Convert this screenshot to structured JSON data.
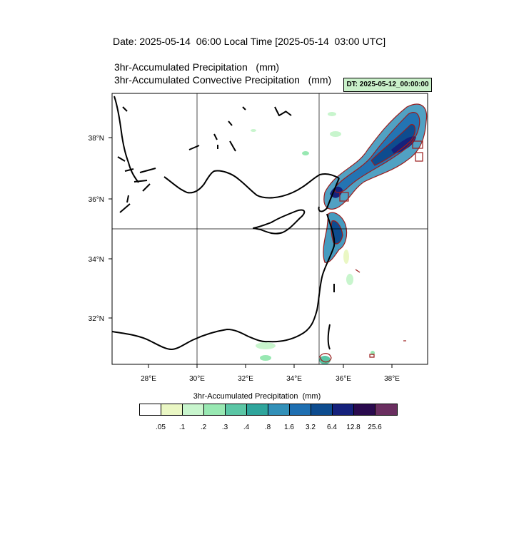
{
  "header": {
    "date_line": "Date: 2025-05-14  06:00 Local Time [2025-05-14  03:00 UTC]",
    "line1": "3hr-Accumulated Precipitation   (mm)",
    "line2": "3hr-Accumulated Convective Precipitation   (mm)",
    "dt_badge": "DT: 2025-05-12_00:00:00"
  },
  "map": {
    "lon_ticks": [
      "28°E",
      "30°E",
      "32°E",
      "34°E",
      "36°E",
      "38°E"
    ],
    "lat_ticks": [
      "38°N",
      "36°N",
      "34°N",
      "32°N"
    ],
    "gridlines": {
      "lon": [
        30,
        35
      ],
      "lat": [
        35
      ]
    },
    "frame_color": "#000000",
    "coast_color": "#000000",
    "contour_color": "#9b1c1c"
  },
  "colorbar": {
    "title": "3hr-Accumulated Precipitation  (mm)",
    "colors": [
      "#ffffff",
      "#eaf7c4",
      "#c8f5cd",
      "#98e8b2",
      "#5bc6a5",
      "#2fa59c",
      "#3290b8",
      "#1e6fb1",
      "#0d4c8f",
      "#15217c",
      "#2a0a4e",
      "#6a2e60"
    ],
    "labels": [
      ".05",
      ".1",
      ".2",
      ".3",
      ".4",
      ".8",
      "1.6",
      "3.2",
      "6.4",
      "12.8",
      "25.6"
    ]
  }
}
